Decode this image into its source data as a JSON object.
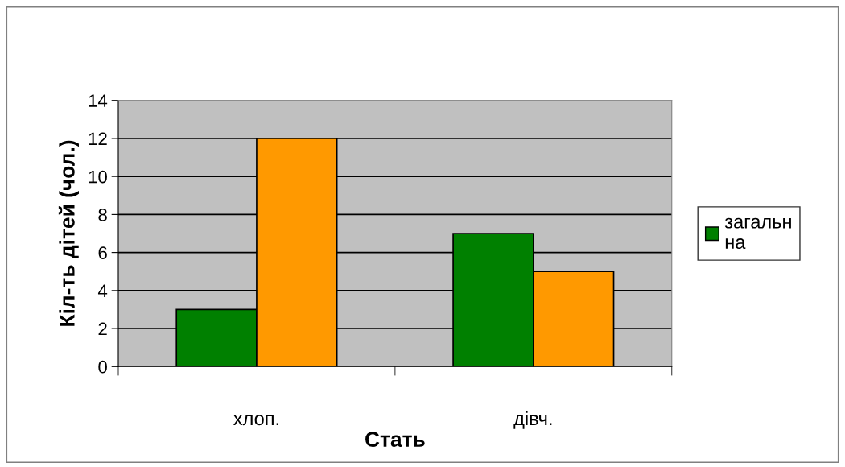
{
  "chart_data": {
    "type": "bar",
    "xlabel": "Стать",
    "ylabel": "Кіл-ть дітей (чол.)",
    "categories": [
      "хлоп.",
      "дівч."
    ],
    "series": [
      {
        "name": "загальн\nна",
        "color": "#008000",
        "values": [
          3,
          7
        ]
      },
      {
        "color": "#ff9900",
        "values": [
          12,
          5
        ]
      }
    ],
    "ylim": [
      0,
      14
    ],
    "yticks": [
      0,
      2,
      4,
      6,
      8,
      10,
      12,
      14
    ],
    "grid": "y",
    "legend": "right"
  }
}
